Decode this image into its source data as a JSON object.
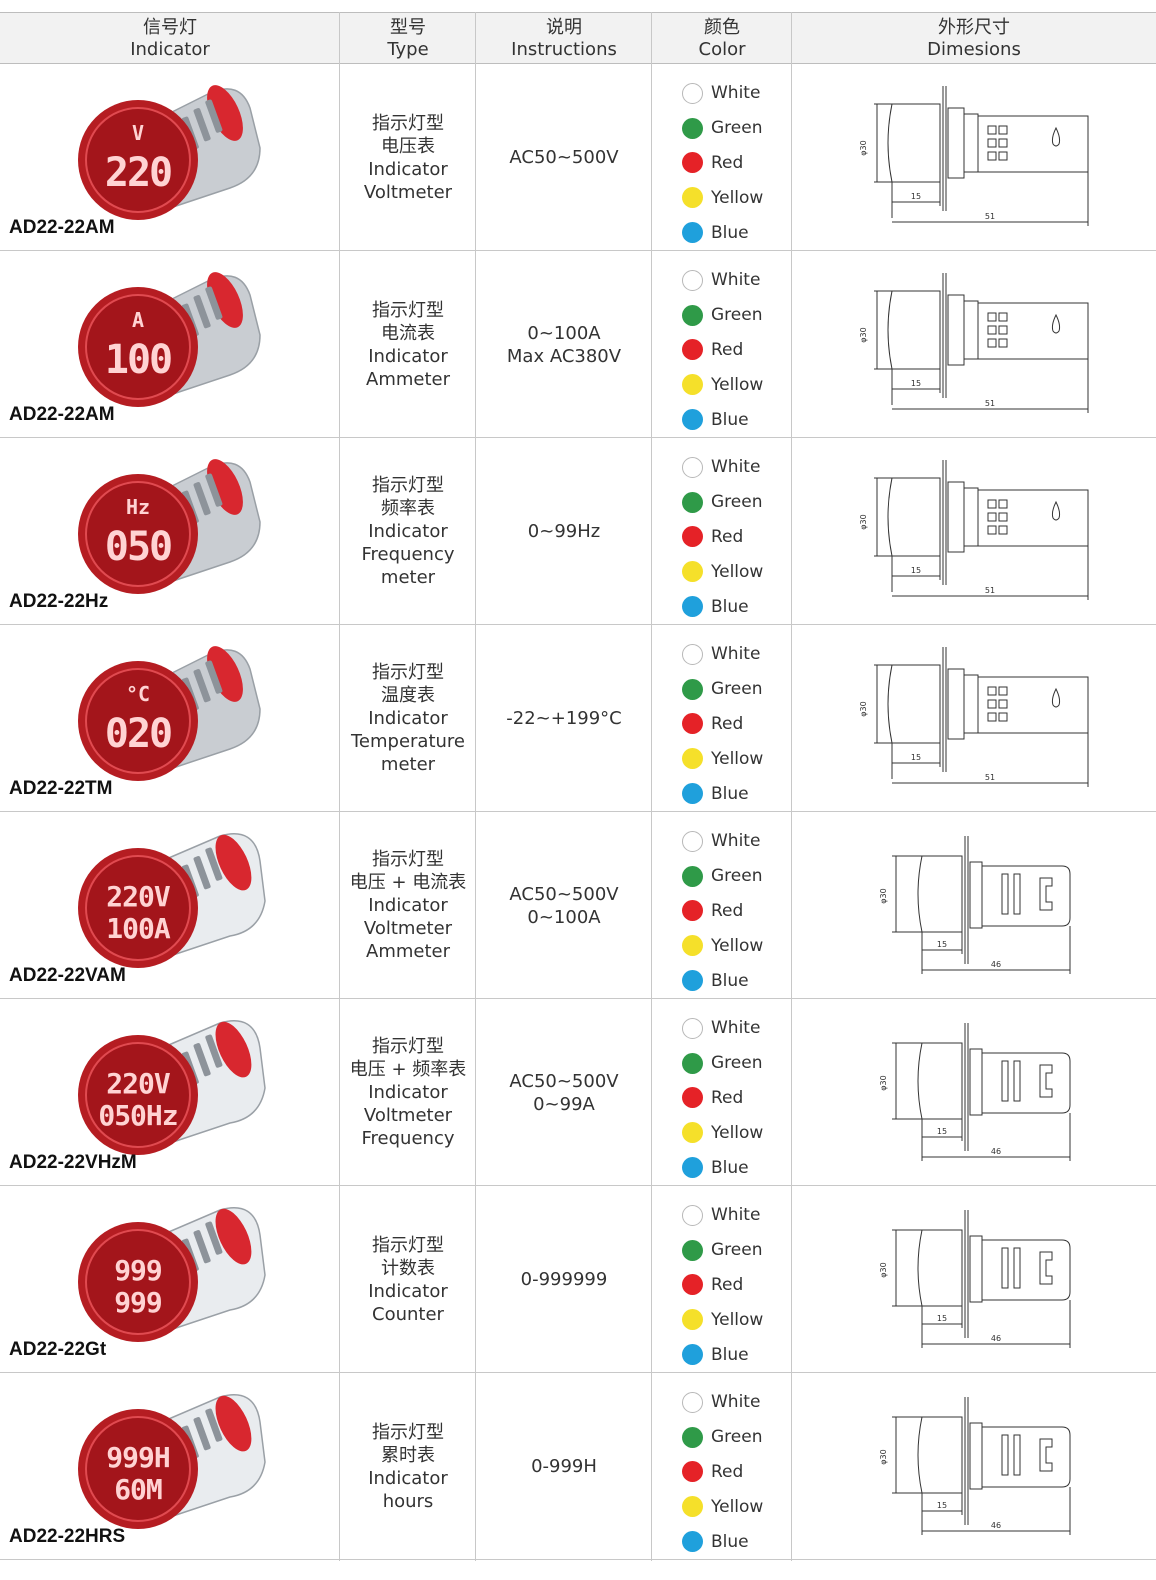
{
  "header": {
    "indicator_cn": "信号灯",
    "indicator_en": "Indicator",
    "type_cn": "型号",
    "type_en": "Type",
    "instructions_cn": "说明",
    "instructions_en": "Instructions",
    "color_cn": "颜色",
    "color_en": "Color",
    "dimensions_cn": "外形尺寸",
    "dimensions_en": "Dimesions"
  },
  "colors": [
    {
      "label": "White",
      "hex": "#ffffff"
    },
    {
      "label": "Green",
      "hex": "#2f9a48"
    },
    {
      "label": "Red",
      "hex": "#e52227"
    },
    {
      "label": "Yellow",
      "hex": "#f5e02a"
    },
    {
      "label": "Blue",
      "hex": "#1fa0dc"
    }
  ],
  "rows": [
    {
      "model": "AD22-22AM",
      "type": [
        "指示灯型",
        "电压表",
        "Indicator",
        "Voltmeter"
      ],
      "instructions": [
        "AC50~500V"
      ],
      "display": {
        "unit": "V",
        "line1": "220",
        "line2": ""
      },
      "dims": {
        "d": "φ30",
        "a": "15",
        "b": "51"
      }
    },
    {
      "model": "AD22-22AM",
      "type": [
        "指示灯型",
        "电流表",
        "Indicator",
        "Ammeter"
      ],
      "instructions": [
        "0~100A",
        "Max AC380V"
      ],
      "display": {
        "unit": "A",
        "line1": "100",
        "line2": ""
      },
      "dims": {
        "d": "φ30",
        "a": "15",
        "b": "51"
      }
    },
    {
      "model": "AD22-22Hz",
      "type": [
        "指示灯型",
        "频率表",
        "Indicator",
        "Frequency",
        "meter"
      ],
      "instructions": [
        "0~99Hz"
      ],
      "display": {
        "unit": "Hz",
        "line1": "050",
        "line2": ""
      },
      "dims": {
        "d": "φ30",
        "a": "15",
        "b": "51"
      }
    },
    {
      "model": "AD22-22TM",
      "type": [
        "指示灯型",
        "温度表",
        "Indicator",
        "Temperature",
        "meter"
      ],
      "instructions": [
        "-22~+199°C"
      ],
      "display": {
        "unit": "°C",
        "line1": "020",
        "line2": ""
      },
      "dims": {
        "d": "φ30",
        "a": "15",
        "b": "51"
      }
    },
    {
      "model": "AD22-22VAM",
      "type": [
        "指示灯型",
        "电压 + 电流表",
        "Indicator",
        "Voltmeter",
        "Ammeter"
      ],
      "instructions": [
        "AC50~500V",
        "0~100A"
      ],
      "display": {
        "unit": "",
        "line1": "220V",
        "line2": "100A"
      },
      "dims": {
        "d": "φ30",
        "a": "15",
        "b": "46"
      }
    },
    {
      "model": "AD22-22VHzM",
      "type": [
        "指示灯型",
        "电压 + 频率表",
        "Indicator",
        "Voltmeter",
        "Frequency"
      ],
      "instructions": [
        "AC50~500V",
        "0~99A"
      ],
      "display": {
        "unit": "",
        "line1": "220V",
        "line2": "050Hz"
      },
      "dims": {
        "d": "φ30",
        "a": "15",
        "b": "46"
      }
    },
    {
      "model": "AD22-22Gt",
      "type": [
        "指示灯型",
        "计数表",
        "Indicator",
        "Counter"
      ],
      "instructions": [
        "0-999999"
      ],
      "display": {
        "unit": "",
        "line1": "999",
        "line2": "999"
      },
      "dims": {
        "d": "φ30",
        "a": "15",
        "b": "46"
      }
    },
    {
      "model": "AD22-22HRS",
      "type": [
        "指示灯型",
        "累时表",
        "Indicator",
        "hours"
      ],
      "instructions": [
        "0-999H"
      ],
      "display": {
        "unit": "",
        "line1": "999H",
        "line2": "60M"
      },
      "dims": {
        "d": "φ30",
        "a": "15",
        "b": "46"
      }
    }
  ]
}
